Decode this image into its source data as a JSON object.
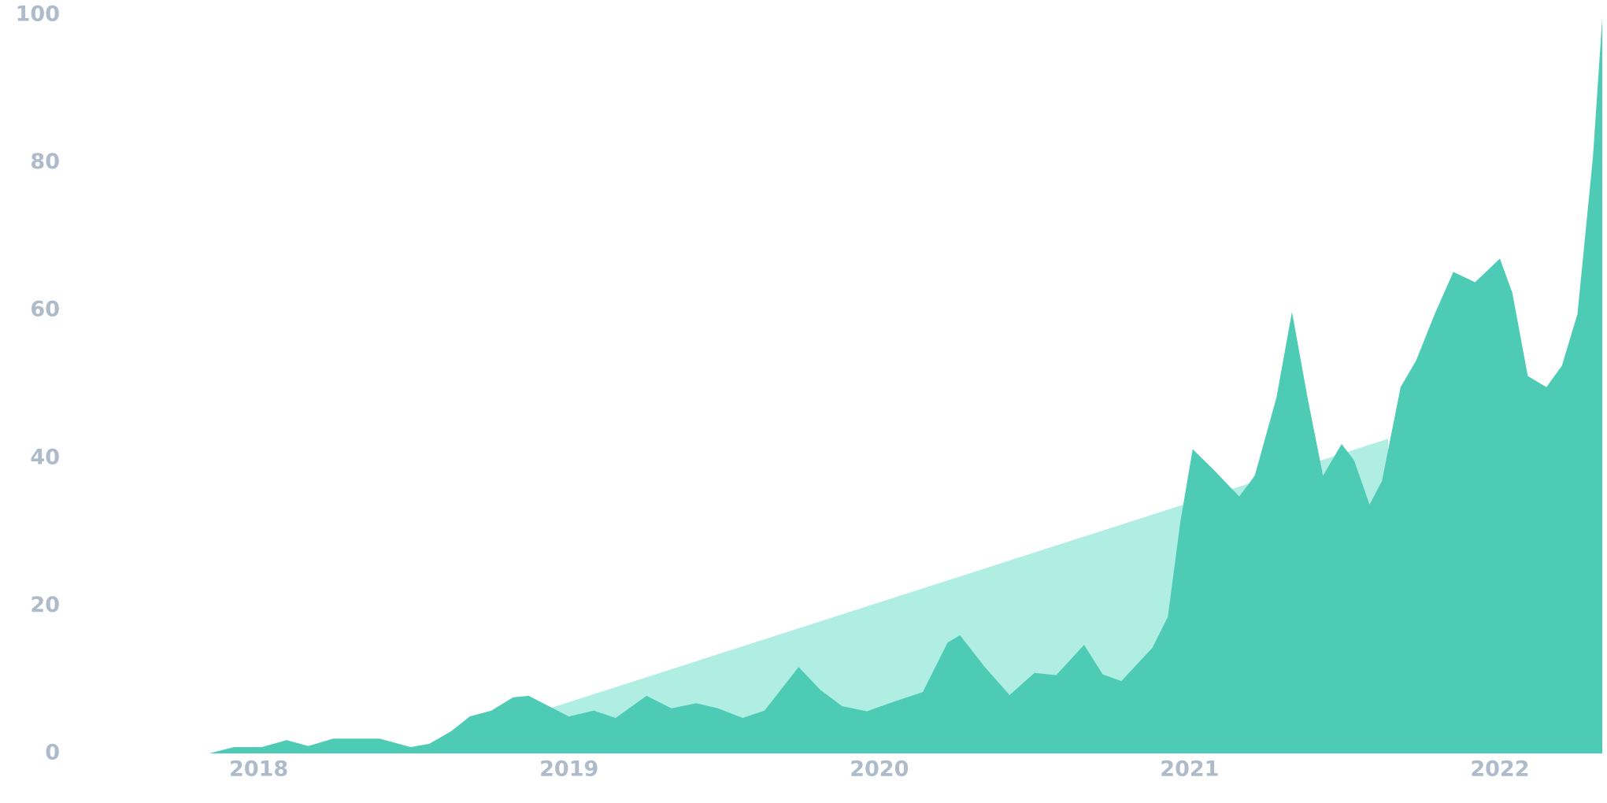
{
  "chart_data": {
    "type": "area",
    "xlim": [
      2017.43,
      2022.33
    ],
    "xticks": [
      2018,
      2019,
      2020,
      2021,
      2022
    ],
    "ylim": [
      0,
      100
    ],
    "yticks": [
      0,
      20,
      40,
      60,
      80,
      100
    ],
    "series": [
      {
        "color": "#b0ede3",
        "x": [
          2018.93,
          2021.64
        ],
        "values": [
          6,
          42.6
        ]
      },
      {
        "color": "#4ecbb4",
        "x": [
          2017.43,
          2017.84,
          2017.92,
          2018.01,
          2018.09,
          2018.16,
          2018.24,
          2018.3,
          2018.39,
          2018.49,
          2018.55,
          2018.62,
          2018.68,
          2018.75,
          2018.82,
          2018.87,
          2018.93,
          2019.0,
          2019.08,
          2019.15,
          2019.25,
          2019.33,
          2019.41,
          2019.48,
          2019.56,
          2019.63,
          2019.74,
          2019.81,
          2019.88,
          2019.96,
          2020.04,
          2020.14,
          2020.22,
          2020.26,
          2020.34,
          2020.42,
          2020.5,
          2020.57,
          2020.66,
          2020.72,
          2020.78,
          2020.88,
          2020.93,
          2020.97,
          2021.01,
          2021.08,
          2021.16,
          2021.21,
          2021.28,
          2021.33,
          2021.38,
          2021.43,
          2021.49,
          2021.53,
          2021.58,
          2021.62,
          2021.68,
          2021.73,
          2021.79,
          2021.85,
          2021.92,
          2022.0,
          2022.04,
          2022.09,
          2022.15,
          2022.2,
          2022.25,
          2022.3,
          2022.33
        ],
        "values": [
          0,
          0,
          0.85,
          0.85,
          1.8,
          1,
          2,
          2,
          2,
          0.85,
          1.3,
          3,
          5,
          5.8,
          7.6,
          7.8,
          6.5,
          5,
          5.8,
          4.8,
          7.8,
          6.1,
          6.8,
          6.1,
          4.8,
          5.8,
          11.7,
          8.6,
          6.4,
          5.7,
          6.9,
          8.3,
          15,
          16,
          11.7,
          7.9,
          10.9,
          10.6,
          14.7,
          10.7,
          9.8,
          14.3,
          18.5,
          31.3,
          41.2,
          38.3,
          34.8,
          37.6,
          48.2,
          59.8,
          48.2,
          37.6,
          41.9,
          39.7,
          33.7,
          36.9,
          49.6,
          53.2,
          59.5,
          65.2,
          63.8,
          67,
          62.4,
          51.1,
          49.6,
          52.5,
          59.5,
          80.8,
          99.6
        ]
      }
    ]
  }
}
